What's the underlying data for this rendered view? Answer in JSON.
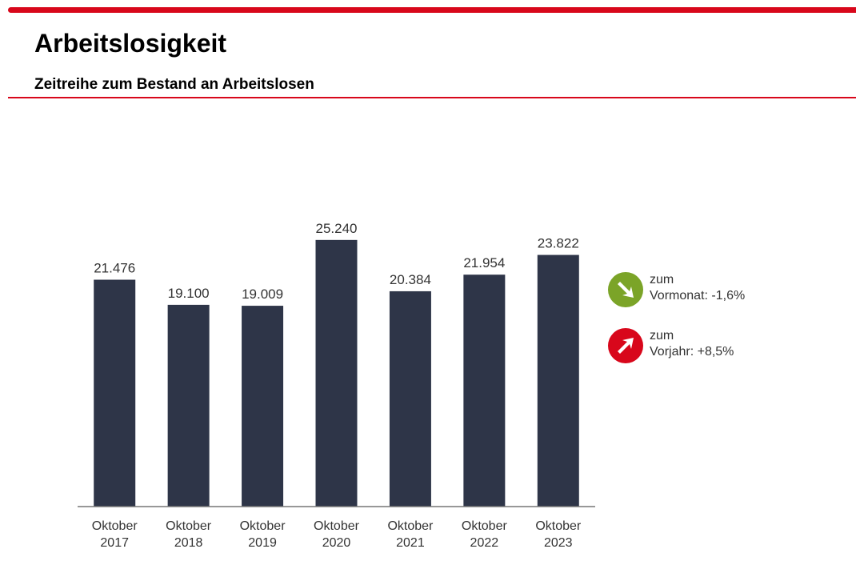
{
  "header": {
    "title": "Arbeitslosigkeit",
    "subtitle": "Zeitreihe zum Bestand an Arbeitslosen"
  },
  "colors": {
    "accent": "#d8071b",
    "bar": "#2e3548",
    "down": "#7ba428",
    "up": "#d8071b"
  },
  "chart_data": {
    "type": "bar",
    "categories": [
      "Oktober 2017",
      "Oktober 2018",
      "Oktober 2019",
      "Oktober 2020",
      "Oktober 2021",
      "Oktober 2022",
      "Oktober 2023"
    ],
    "values": [
      21476,
      19100,
      19009,
      25240,
      20384,
      21954,
      23822
    ],
    "value_labels": [
      "21.476",
      "19.100",
      "19.009",
      "25.240",
      "20.384",
      "21.954",
      "23.822"
    ],
    "ylim": [
      0,
      30000
    ],
    "grid": false
  },
  "legend": [
    {
      "icon": "arrow-down-right-icon",
      "line1": "zum",
      "line2": "Vormonat:",
      "value": "-1,6%"
    },
    {
      "icon": "arrow-up-right-icon",
      "line1": "zum",
      "line2": "Vorjahr:",
      "value": "+8,5%"
    }
  ]
}
